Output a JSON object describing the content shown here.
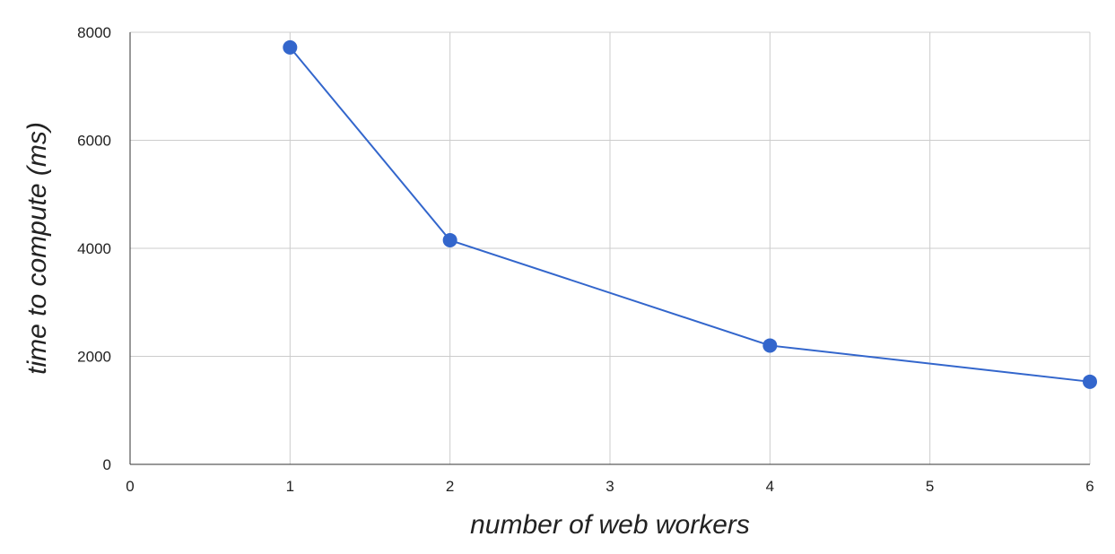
{
  "chart_data": {
    "type": "line",
    "title": "",
    "xlabel": "number of web workers",
    "ylabel": "time to compute (ms)",
    "xlim": [
      0,
      6
    ],
    "ylim": [
      0,
      8000
    ],
    "x_ticks": [
      "0",
      "1",
      "2",
      "3",
      "4",
      "5",
      "6"
    ],
    "y_ticks": [
      "0",
      "2000",
      "4000",
      "6000",
      "8000"
    ],
    "grid": true,
    "legend": "none",
    "series": [
      {
        "color": "#3366cc",
        "points": [
          {
            "x": 1,
            "y": 7720
          },
          {
            "x": 2,
            "y": 4150
          },
          {
            "x": 4,
            "y": 2200
          },
          {
            "x": 6,
            "y": 1530
          }
        ]
      }
    ]
  }
}
